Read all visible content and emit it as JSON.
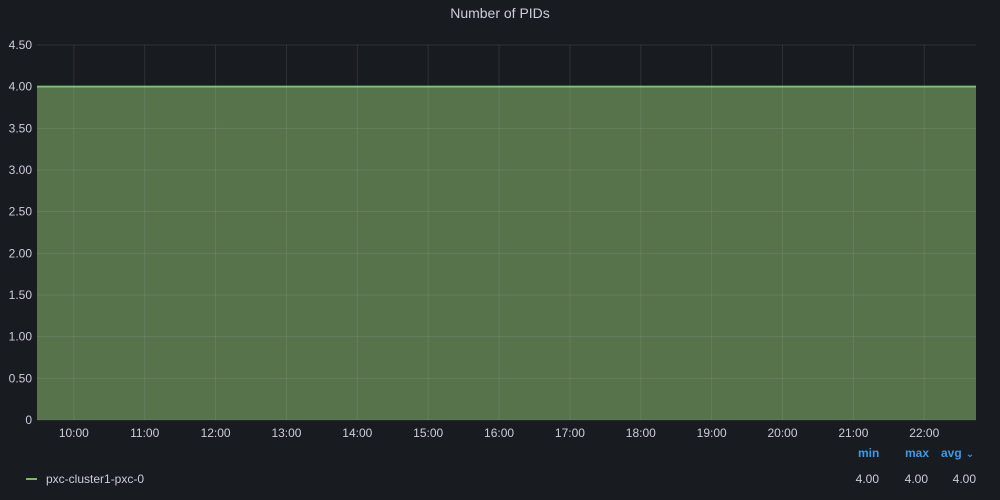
{
  "panel": {
    "title": "Number of PIDs"
  },
  "chart_data": {
    "type": "area",
    "title": "Number of PIDs",
    "xlabel": "",
    "ylabel": "",
    "x_ticks": [
      "10:00",
      "11:00",
      "12:00",
      "13:00",
      "14:00",
      "15:00",
      "16:00",
      "17:00",
      "18:00",
      "19:00",
      "20:00",
      "21:00",
      "22:00"
    ],
    "y_ticks": [
      "0",
      "0.50",
      "1.00",
      "1.50",
      "2.00",
      "2.50",
      "3.00",
      "3.50",
      "4.00",
      "4.50"
    ],
    "ylim": [
      0,
      4.5
    ],
    "xlim_hours": [
      9.48,
      22.73
    ],
    "grid": true,
    "series": [
      {
        "name": "pxc-cluster1-pxc-0",
        "color": "#73bf69",
        "fill_color": "#56734c",
        "x_hours": [
          9.48,
          10,
          11,
          12,
          13,
          14,
          15,
          16,
          17,
          18,
          19,
          20,
          21,
          22,
          22.73
        ],
        "values": [
          4,
          4,
          4,
          4,
          4,
          4,
          4,
          4,
          4,
          4,
          4,
          4,
          4,
          4,
          4
        ]
      }
    ],
    "legend_position": "bottom",
    "legend": {
      "columns": [
        "min",
        "max",
        "avg"
      ],
      "sort_icon": "chevron-down-icon",
      "rows": [
        {
          "name": "pxc-cluster1-pxc-0",
          "min": "4.00",
          "max": "4.00",
          "avg": "4.00"
        }
      ]
    }
  }
}
